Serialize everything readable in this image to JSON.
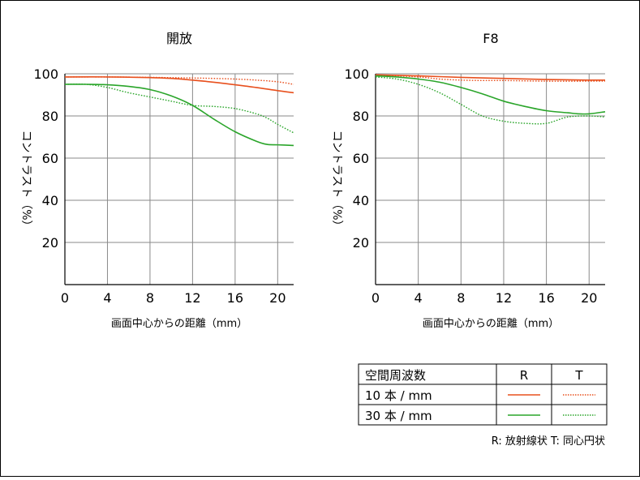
{
  "chart_data": [
    {
      "type": "line",
      "title": "開放",
      "xlabel": "画面中心からの距離（mm）",
      "ylabel": "コントラスト（%）",
      "xlim": [
        0,
        21.5
      ],
      "ylim": [
        0,
        100
      ],
      "xticks": [
        "0",
        "4",
        "8",
        "12",
        "16",
        "20"
      ],
      "yticks": [
        "100",
        "80",
        "60",
        "40",
        "20"
      ],
      "series": [
        {
          "key": "10R",
          "x": [
            0,
            4,
            8,
            10,
            12,
            14,
            16,
            18,
            20,
            21.5
          ],
          "values": [
            98.5,
            98.5,
            98.2,
            97.8,
            97.0,
            96.0,
            94.8,
            93.5,
            92.0,
            91.0
          ]
        },
        {
          "key": "10T",
          "x": [
            0,
            4,
            8,
            12,
            14,
            16,
            18,
            20,
            21.5
          ],
          "values": [
            98.5,
            98.5,
            98.3,
            98.0,
            97.8,
            97.5,
            97.0,
            96.2,
            95.0
          ]
        },
        {
          "key": "30R",
          "x": [
            0,
            2,
            4,
            6,
            8,
            10,
            12,
            14,
            16,
            18,
            19,
            20,
            21.5
          ],
          "values": [
            95.0,
            95.0,
            94.8,
            94.0,
            92.5,
            89.5,
            85.0,
            78.5,
            72.5,
            68.0,
            66.5,
            66.3,
            66.0
          ]
        },
        {
          "key": "30T",
          "x": [
            0,
            2,
            4,
            6,
            8,
            10,
            12,
            14,
            16,
            18,
            19,
            20,
            21.5
          ],
          "values": [
            95.0,
            95.0,
            93.5,
            91.0,
            89.0,
            87.0,
            85.0,
            84.5,
            83.5,
            81.0,
            79.0,
            76.0,
            72.0
          ]
        }
      ]
    },
    {
      "type": "line",
      "title": "F8",
      "xlabel": "画面中心からの距離（mm）",
      "ylabel": "コントラスト（%）",
      "xlim": [
        0,
        21.5
      ],
      "ylim": [
        0,
        100
      ],
      "xticks": [
        "0",
        "4",
        "8",
        "12",
        "16",
        "20"
      ],
      "yticks": [
        "100",
        "80",
        "60",
        "40",
        "20"
      ],
      "series": [
        {
          "key": "10R",
          "x": [
            0,
            4,
            8,
            12,
            16,
            20,
            21.5
          ],
          "values": [
            99.5,
            99.0,
            98.3,
            97.8,
            97.3,
            97.0,
            97.0
          ]
        },
        {
          "key": "10T",
          "x": [
            0,
            4,
            6,
            8,
            10,
            12,
            16,
            20,
            21.5
          ],
          "values": [
            99.5,
            98.5,
            97.5,
            97.0,
            96.8,
            96.8,
            96.5,
            96.5,
            96.5
          ]
        },
        {
          "key": "30R",
          "x": [
            0,
            2,
            4,
            6,
            8,
            10,
            12,
            14,
            16,
            18,
            19,
            20,
            21.5
          ],
          "values": [
            99.0,
            98.5,
            97.5,
            96.0,
            93.5,
            90.5,
            87.0,
            84.5,
            82.5,
            81.5,
            81.0,
            81.0,
            82.0
          ]
        },
        {
          "key": "30T",
          "x": [
            0,
            2,
            4,
            6,
            8,
            10,
            12,
            14,
            16,
            18,
            20,
            21.5
          ],
          "values": [
            98.5,
            97.5,
            95.0,
            91.0,
            85.5,
            80.0,
            77.5,
            76.5,
            76.5,
            79.5,
            80.0,
            79.5
          ]
        }
      ]
    }
  ],
  "legend": {
    "header": "空間周波数",
    "col_r": "R",
    "col_t": "T",
    "row1": "10 本 / mm",
    "row2": "30 本 / mm"
  },
  "footnote": "R: 放射線状  T: 同心円状",
  "colors": {
    "freq10": "#e8501e",
    "freq30": "#2aa52a",
    "grid": "#8a8a8a"
  }
}
